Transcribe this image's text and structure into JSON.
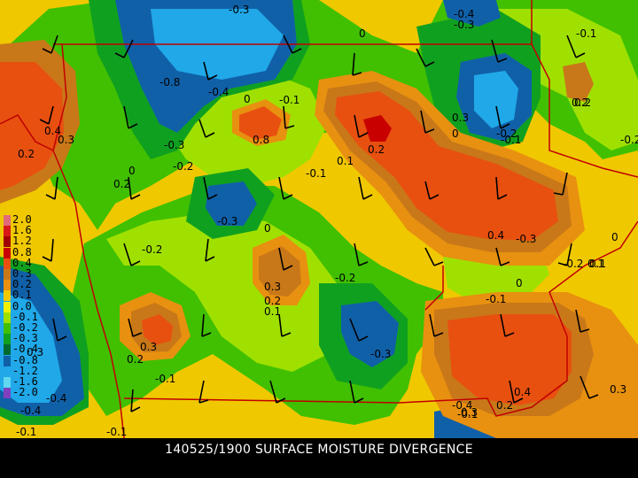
{
  "caption": "140525/1900 SURFACE MOISTURE DIVERGENCE",
  "legend": {
    "entries": [
      {
        "label": "2.0",
        "color": "#e06a7a"
      },
      {
        "label": "1.6",
        "color": "#d81818"
      },
      {
        "label": "1.2",
        "color": "#a00000"
      },
      {
        "label": "0.8",
        "color": "#c80000"
      },
      {
        "label": "0.4",
        "color": "#e85010"
      },
      {
        "label": "0.3",
        "color": "#c87818"
      },
      {
        "label": "0.2",
        "color": "#e89010"
      },
      {
        "label": "0.1",
        "color": "#f0c800"
      },
      {
        "label": "0.0",
        "color": "#f0f000"
      },
      {
        "label": "-0.1",
        "color": "#a0e000"
      },
      {
        "label": "-0.2",
        "color": "#40c000"
      },
      {
        "label": "-0.3",
        "color": "#10a020"
      },
      {
        "label": "-0.4",
        "color": "#006a30"
      },
      {
        "label": "-0.8",
        "color": "#1060a8"
      },
      {
        "label": "-1.2",
        "color": "#20a8e8"
      },
      {
        "label": "-1.6",
        "color": "#60d8f0"
      },
      {
        "label": "-2.0",
        "color": "#8040c0"
      }
    ]
  },
  "contour_labels": [
    "-0.3",
    "-0.4",
    "-0.3",
    "0",
    "-0.1",
    "-0.8",
    "-0.4",
    "0",
    "-0.1",
    "0.3",
    "0.2",
    "0.4",
    "0",
    "0.3",
    "0.8",
    "0.2",
    "-0.2",
    "-0.1",
    "0.2",
    "-0.3",
    "-0.2",
    "0.1",
    "0",
    "-0.1",
    "0.2",
    "-0.3",
    "0",
    "0.4",
    "-0.3",
    "-0.2",
    "0.1",
    "0",
    "-0.2",
    "0.3",
    "0.2",
    "0.1",
    "-0.2",
    "-0.1",
    "0",
    "0.3",
    "0.2",
    "-0.1",
    "-0.3",
    "0.4",
    "0.3",
    "0.3",
    "-0.4",
    "-0.4",
    "-0.1",
    "-0.1",
    "0.2",
    "-0.4",
    "0.3",
    "-0.1",
    "-0.2",
    "0.2",
    "0.1"
  ],
  "colors": {
    "background": "#000000",
    "caption_text": "#ffffff",
    "state_lines": "#c00000",
    "contour_lines": "#000000"
  }
}
